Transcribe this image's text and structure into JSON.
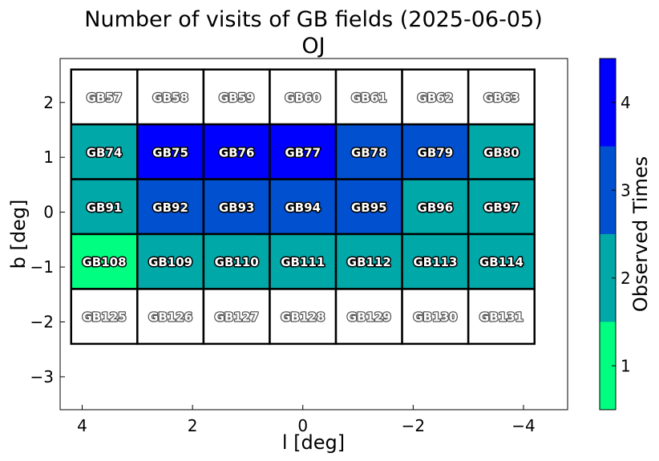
{
  "chart_data": {
    "type": "heatmap",
    "title": "Number of visits of GB fields (2025-06-05)",
    "subtitle": "OJ",
    "xlabel": "l [deg]",
    "ylabel": "b [deg]",
    "colorbar_label": "Observed Times",
    "xlim": [
      4.4,
      -4.8
    ],
    "ylim": [
      -3.6,
      2.8
    ],
    "x_ticks": [
      4,
      2,
      0,
      -2,
      -4
    ],
    "x_tick_labels": [
      "4",
      "2",
      "0",
      "−2",
      "−4"
    ],
    "y_ticks": [
      2,
      1,
      0,
      -1,
      -2,
      -3
    ],
    "y_tick_labels": [
      "2",
      "1",
      "0",
      "−1",
      "−2",
      "−3"
    ],
    "grid": false,
    "cell_size_deg": 1.2,
    "column_centers_l": [
      3.6,
      2.4,
      1.2,
      0.0,
      -1.2,
      -2.4,
      -3.6
    ],
    "row_centers_b": [
      2.0,
      1.0,
      0.0,
      -1.0,
      -2.0,
      -3.0
    ],
    "row_edges_b": [
      2.6,
      1.6,
      0.6,
      -0.4,
      -1.4,
      -2.4
    ],
    "row_heights_deg": [
      1.0,
      1.0,
      1.0,
      1.0,
      1.0,
      1.0
    ],
    "colorbar": {
      "range": [
        0.5,
        4.5
      ],
      "ticks": [
        1,
        2,
        3,
        4
      ],
      "tick_labels": [
        "1",
        "2",
        "3",
        "4"
      ],
      "colors": [
        "#00ff80",
        "#00a8a8",
        "#0050d0",
        "#0000ff"
      ]
    },
    "fields": [
      {
        "name": "GB57",
        "row": 0,
        "col": 0,
        "visits": 0
      },
      {
        "name": "GB58",
        "row": 0,
        "col": 1,
        "visits": 0
      },
      {
        "name": "GB59",
        "row": 0,
        "col": 2,
        "visits": 0
      },
      {
        "name": "GB60",
        "row": 0,
        "col": 3,
        "visits": 0
      },
      {
        "name": "GB61",
        "row": 0,
        "col": 4,
        "visits": 0
      },
      {
        "name": "GB62",
        "row": 0,
        "col": 5,
        "visits": 0
      },
      {
        "name": "GB63",
        "row": 0,
        "col": 6,
        "visits": 0
      },
      {
        "name": "GB74",
        "row": 1,
        "col": 0,
        "visits": 2
      },
      {
        "name": "GB75",
        "row": 1,
        "col": 1,
        "visits": 4
      },
      {
        "name": "GB76",
        "row": 1,
        "col": 2,
        "visits": 4
      },
      {
        "name": "GB77",
        "row": 1,
        "col": 3,
        "visits": 4
      },
      {
        "name": "GB78",
        "row": 1,
        "col": 4,
        "visits": 3
      },
      {
        "name": "GB79",
        "row": 1,
        "col": 5,
        "visits": 3
      },
      {
        "name": "GB80",
        "row": 1,
        "col": 6,
        "visits": 2
      },
      {
        "name": "GB91",
        "row": 2,
        "col": 0,
        "visits": 2
      },
      {
        "name": "GB92",
        "row": 2,
        "col": 1,
        "visits": 3
      },
      {
        "name": "GB93",
        "row": 2,
        "col": 2,
        "visits": 3
      },
      {
        "name": "GB94",
        "row": 2,
        "col": 3,
        "visits": 3
      },
      {
        "name": "GB95",
        "row": 2,
        "col": 4,
        "visits": 3
      },
      {
        "name": "GB96",
        "row": 2,
        "col": 5,
        "visits": 2
      },
      {
        "name": "GB97",
        "row": 2,
        "col": 6,
        "visits": 2
      },
      {
        "name": "GB108",
        "row": 3,
        "col": 0,
        "visits": 1
      },
      {
        "name": "GB109",
        "row": 3,
        "col": 1,
        "visits": 2
      },
      {
        "name": "GB110",
        "row": 3,
        "col": 2,
        "visits": 2
      },
      {
        "name": "GB111",
        "row": 3,
        "col": 3,
        "visits": 2
      },
      {
        "name": "GB112",
        "row": 3,
        "col": 4,
        "visits": 2
      },
      {
        "name": "GB113",
        "row": 3,
        "col": 5,
        "visits": 2
      },
      {
        "name": "GB114",
        "row": 3,
        "col": 6,
        "visits": 2
      },
      {
        "name": "GB125",
        "row": 4,
        "col": 0,
        "visits": 0
      },
      {
        "name": "GB126",
        "row": 4,
        "col": 1,
        "visits": 0
      },
      {
        "name": "GB127",
        "row": 4,
        "col": 2,
        "visits": 0
      },
      {
        "name": "GB128",
        "row": 4,
        "col": 3,
        "visits": 0
      },
      {
        "name": "GB129",
        "row": 4,
        "col": 4,
        "visits": 0
      },
      {
        "name": "GB130",
        "row": 4,
        "col": 5,
        "visits": 0
      },
      {
        "name": "GB131",
        "row": 4,
        "col": 6,
        "visits": 0
      }
    ]
  }
}
